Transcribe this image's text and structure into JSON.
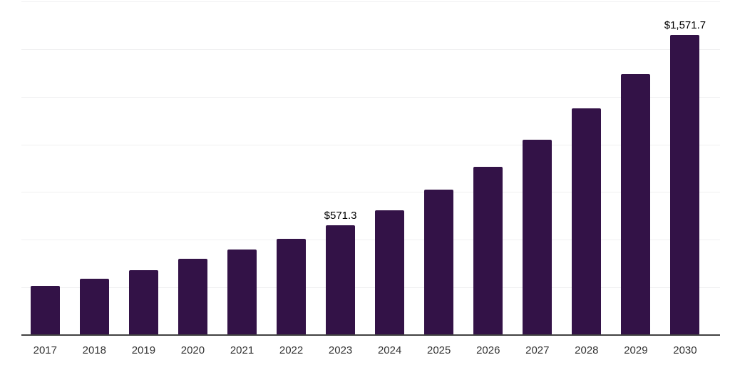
{
  "chart_data": {
    "type": "bar",
    "title": "",
    "xlabel": "",
    "ylabel": "",
    "categories": [
      "2017",
      "2018",
      "2019",
      "2020",
      "2021",
      "2022",
      "2023",
      "2024",
      "2025",
      "2026",
      "2027",
      "2028",
      "2029",
      "2030"
    ],
    "values": [
      255,
      290,
      335,
      395,
      445,
      500,
      571.3,
      650,
      760,
      880,
      1020,
      1185,
      1365,
      1571.7
    ],
    "data_labels": {
      "2023": "$571.3",
      "2030": "$1,571.7"
    },
    "ylim": [
      0,
      1750
    ],
    "grid_step": 250,
    "grid": true,
    "legend": false,
    "y_tick_labels_visible": false,
    "bar_color": "#331247",
    "gridline_color": "#f0f0f1",
    "axis_line_color": "#414141",
    "tick_label_color": "#333333",
    "data_label_color": "#000000",
    "background_color": "#ffffff"
  }
}
